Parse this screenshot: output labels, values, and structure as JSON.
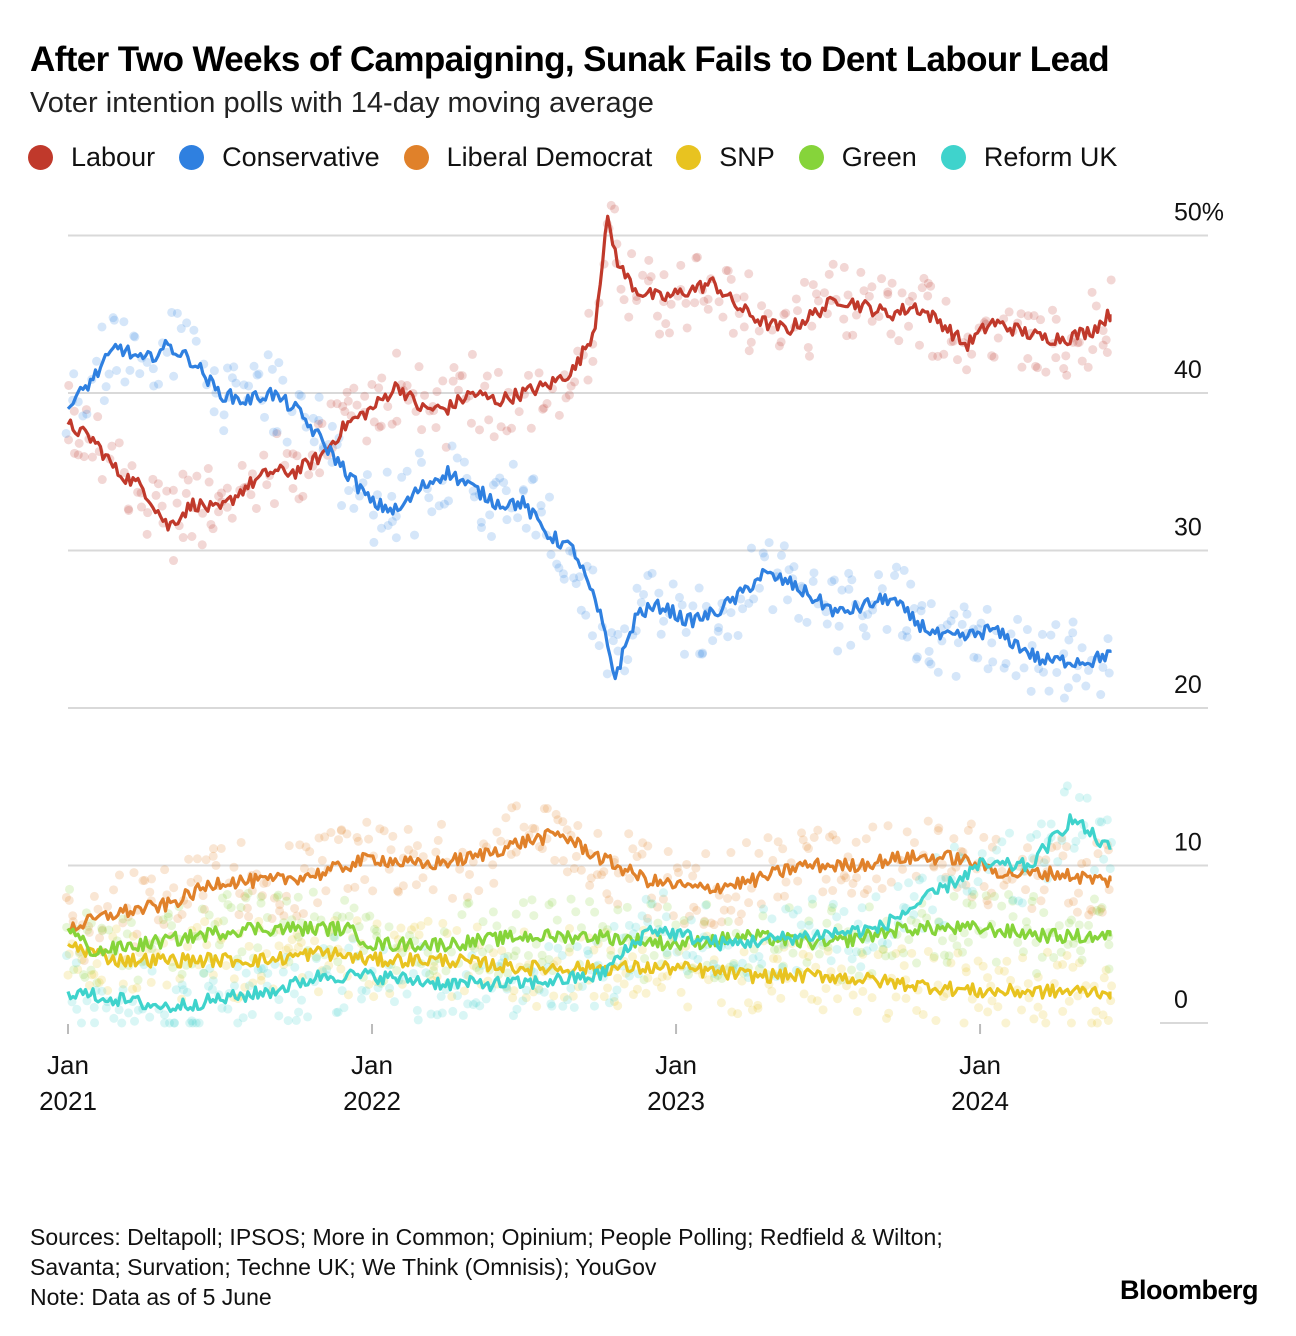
{
  "title": "After Two Weeks of Campaigning, Sunak Fails to Dent Labour Lead",
  "subtitle": "Voter intention polls with 14-day moving average",
  "legend": [
    {
      "label": "Labour",
      "color": "#c0392b"
    },
    {
      "label": "Conservative",
      "color": "#2f80e0"
    },
    {
      "label": "Liberal Democrat",
      "color": "#e0812a"
    },
    {
      "label": "SNP",
      "color": "#e8c320"
    },
    {
      "label": "Green",
      "color": "#86d43a"
    },
    {
      "label": "Reform UK",
      "color": "#3fd3cc"
    }
  ],
  "footer": {
    "sources": "Sources: Deltapoll; IPSOS; More in Common; Opinium; People Polling; Redfield & Wilton; Savanta; Survation; Techne UK; We Think (Omnisis); YouGov",
    "note": "Note: Data as of 5 June"
  },
  "brand": "Bloomberg",
  "chart_data": {
    "type": "line",
    "y_unit": "%",
    "ylim": [
      0,
      50
    ],
    "y_ticks": [
      {
        "value": 50,
        "label": "50%"
      },
      {
        "value": 40,
        "label": "40"
      },
      {
        "value": 30,
        "label": "30"
      },
      {
        "value": 20,
        "label": "20"
      },
      {
        "value": 10,
        "label": "10"
      },
      {
        "value": 0,
        "label": "0"
      }
    ],
    "x_range": [
      "2021-01-01",
      "2024-06-05"
    ],
    "x_ticks": [
      {
        "date": "2021-01-01",
        "line1": "Jan",
        "line2": "2021"
      },
      {
        "date": "2022-01-01",
        "line1": "Jan",
        "line2": "2022"
      },
      {
        "date": "2023-01-01",
        "line1": "Jan",
        "line2": "2023"
      },
      {
        "date": "2024-01-01",
        "line1": "Jan",
        "line2": "2024"
      }
    ],
    "grid": true,
    "legend_position": "top",
    "series": [
      {
        "name": "Labour",
        "color": "#c0392b",
        "points": [
          [
            "2021-01-01",
            38
          ],
          [
            "2021-02-01",
            37
          ],
          [
            "2021-03-01",
            35
          ],
          [
            "2021-04-01",
            34
          ],
          [
            "2021-05-01",
            31.5
          ],
          [
            "2021-06-01",
            33
          ],
          [
            "2021-07-01",
            32.5
          ],
          [
            "2021-08-01",
            34
          ],
          [
            "2021-09-01",
            35
          ],
          [
            "2021-10-01",
            35
          ],
          [
            "2021-11-01",
            36
          ],
          [
            "2021-12-01",
            38
          ],
          [
            "2022-01-01",
            39
          ],
          [
            "2022-02-01",
            40.5
          ],
          [
            "2022-03-01",
            39
          ],
          [
            "2022-04-01",
            39
          ],
          [
            "2022-05-01",
            40
          ],
          [
            "2022-06-01",
            39.5
          ],
          [
            "2022-07-01",
            40
          ],
          [
            "2022-08-01",
            40.5
          ],
          [
            "2022-09-01",
            41.5
          ],
          [
            "2022-09-25",
            44
          ],
          [
            "2022-10-10",
            51
          ],
          [
            "2022-10-25",
            48
          ],
          [
            "2022-11-15",
            46.5
          ],
          [
            "2022-12-15",
            46
          ],
          [
            "2023-01-15",
            46.5
          ],
          [
            "2023-02-15",
            47
          ],
          [
            "2023-03-15",
            45.5
          ],
          [
            "2023-04-15",
            44.5
          ],
          [
            "2023-05-15",
            44
          ],
          [
            "2023-06-15",
            45
          ],
          [
            "2023-07-15",
            46
          ],
          [
            "2023-08-15",
            45.5
          ],
          [
            "2023-09-15",
            45
          ],
          [
            "2023-10-15",
            45.5
          ],
          [
            "2023-11-15",
            44.5
          ],
          [
            "2023-12-15",
            43
          ],
          [
            "2024-01-15",
            44.5
          ],
          [
            "2024-02-15",
            44
          ],
          [
            "2024-03-15",
            43.5
          ],
          [
            "2024-04-15",
            43.5
          ],
          [
            "2024-05-15",
            44
          ],
          [
            "2024-06-05",
            45
          ]
        ]
      },
      {
        "name": "Conservative",
        "color": "#2f80e0",
        "points": [
          [
            "2021-01-01",
            39
          ],
          [
            "2021-02-01",
            41
          ],
          [
            "2021-03-01",
            43
          ],
          [
            "2021-04-01",
            42
          ],
          [
            "2021-05-01",
            43
          ],
          [
            "2021-06-01",
            42
          ],
          [
            "2021-07-01",
            40
          ],
          [
            "2021-08-01",
            39.5
          ],
          [
            "2021-09-01",
            40
          ],
          [
            "2021-10-01",
            39
          ],
          [
            "2021-11-01",
            37
          ],
          [
            "2021-12-01",
            35
          ],
          [
            "2022-01-01",
            33
          ],
          [
            "2022-02-01",
            32.5
          ],
          [
            "2022-03-01",
            34
          ],
          [
            "2022-04-01",
            35
          ],
          [
            "2022-05-01",
            34
          ],
          [
            "2022-06-01",
            33
          ],
          [
            "2022-07-01",
            33
          ],
          [
            "2022-08-01",
            31
          ],
          [
            "2022-09-01",
            30
          ],
          [
            "2022-10-01",
            26
          ],
          [
            "2022-10-20",
            22
          ],
          [
            "2022-11-15",
            26
          ],
          [
            "2022-12-15",
            26.5
          ],
          [
            "2023-01-15",
            25.5
          ],
          [
            "2023-02-15",
            26
          ],
          [
            "2023-03-15",
            27
          ],
          [
            "2023-04-15",
            28.5
          ],
          [
            "2023-05-15",
            28
          ],
          [
            "2023-06-15",
            27
          ],
          [
            "2023-07-15",
            26
          ],
          [
            "2023-08-15",
            26.5
          ],
          [
            "2023-09-15",
            27
          ],
          [
            "2023-10-15",
            25.5
          ],
          [
            "2023-11-15",
            24.5
          ],
          [
            "2023-12-15",
            24.5
          ],
          [
            "2024-01-15",
            25
          ],
          [
            "2024-02-15",
            24
          ],
          [
            "2024-03-15",
            23
          ],
          [
            "2024-04-15",
            23
          ],
          [
            "2024-05-15",
            23
          ],
          [
            "2024-06-05",
            23.5
          ]
        ]
      },
      {
        "name": "Liberal Democrat",
        "color": "#e0812a",
        "points": [
          [
            "2021-01-01",
            6
          ],
          [
            "2021-03-01",
            7
          ],
          [
            "2021-05-01",
            7.5
          ],
          [
            "2021-07-01",
            9
          ],
          [
            "2021-09-01",
            9
          ],
          [
            "2021-11-01",
            9.5
          ],
          [
            "2022-01-01",
            10.5
          ],
          [
            "2022-03-01",
            10
          ],
          [
            "2022-05-01",
            10.5
          ],
          [
            "2022-07-01",
            11.5
          ],
          [
            "2022-08-15",
            12
          ],
          [
            "2022-10-01",
            10.5
          ],
          [
            "2022-12-01",
            9
          ],
          [
            "2023-02-01",
            8.5
          ],
          [
            "2023-04-01",
            9
          ],
          [
            "2023-06-01",
            10
          ],
          [
            "2023-08-01",
            10
          ],
          [
            "2023-10-01",
            10.5
          ],
          [
            "2023-12-01",
            10.5
          ],
          [
            "2024-02-01",
            9.5
          ],
          [
            "2024-04-01",
            9.5
          ],
          [
            "2024-06-05",
            9
          ]
        ]
      },
      {
        "name": "SNP",
        "color": "#e8c320",
        "points": [
          [
            "2021-01-01",
            5
          ],
          [
            "2021-03-01",
            4
          ],
          [
            "2021-05-01",
            4
          ],
          [
            "2021-07-01",
            4
          ],
          [
            "2021-09-01",
            4
          ],
          [
            "2021-11-01",
            4.5
          ],
          [
            "2022-01-01",
            4
          ],
          [
            "2022-04-01",
            4
          ],
          [
            "2022-07-01",
            3.5
          ],
          [
            "2022-10-01",
            3.5
          ],
          [
            "2023-01-01",
            3.5
          ],
          [
            "2023-04-01",
            3
          ],
          [
            "2023-07-01",
            3
          ],
          [
            "2023-10-01",
            2.5
          ],
          [
            "2024-01-01",
            2
          ],
          [
            "2024-04-01",
            2
          ],
          [
            "2024-06-05",
            2
          ]
        ]
      },
      {
        "name": "Green",
        "color": "#86d43a",
        "points": [
          [
            "2021-01-01",
            6
          ],
          [
            "2021-02-01",
            4.5
          ],
          [
            "2021-04-01",
            5
          ],
          [
            "2021-06-01",
            5.5
          ],
          [
            "2021-08-01",
            6
          ],
          [
            "2021-10-01",
            6
          ],
          [
            "2021-12-01",
            6
          ],
          [
            "2022-01-01",
            5
          ],
          [
            "2022-04-01",
            5
          ],
          [
            "2022-07-01",
            5.5
          ],
          [
            "2022-10-01",
            5.5
          ],
          [
            "2023-01-01",
            5
          ],
          [
            "2023-04-01",
            5.5
          ],
          [
            "2023-07-01",
            5
          ],
          [
            "2023-10-01",
            6
          ],
          [
            "2024-01-01",
            6
          ],
          [
            "2024-04-01",
            5.5
          ],
          [
            "2024-06-05",
            5.5
          ]
        ]
      },
      {
        "name": "Reform UK",
        "color": "#3fd3cc",
        "points": [
          [
            "2021-01-01",
            2
          ],
          [
            "2021-03-01",
            1.5
          ],
          [
            "2021-05-01",
            1
          ],
          [
            "2021-07-01",
            1.5
          ],
          [
            "2021-09-01",
            2
          ],
          [
            "2021-11-01",
            3
          ],
          [
            "2022-01-01",
            3
          ],
          [
            "2022-04-01",
            2.5
          ],
          [
            "2022-07-01",
            2.5
          ],
          [
            "2022-10-01",
            3
          ],
          [
            "2022-12-01",
            6
          ],
          [
            "2023-03-01",
            5
          ],
          [
            "2023-06-01",
            5.5
          ],
          [
            "2023-09-01",
            6
          ],
          [
            "2023-11-01",
            8
          ],
          [
            "2024-01-01",
            10
          ],
          [
            "2024-03-01",
            10
          ],
          [
            "2024-04-20",
            13
          ],
          [
            "2024-06-05",
            11
          ]
        ]
      }
    ]
  }
}
